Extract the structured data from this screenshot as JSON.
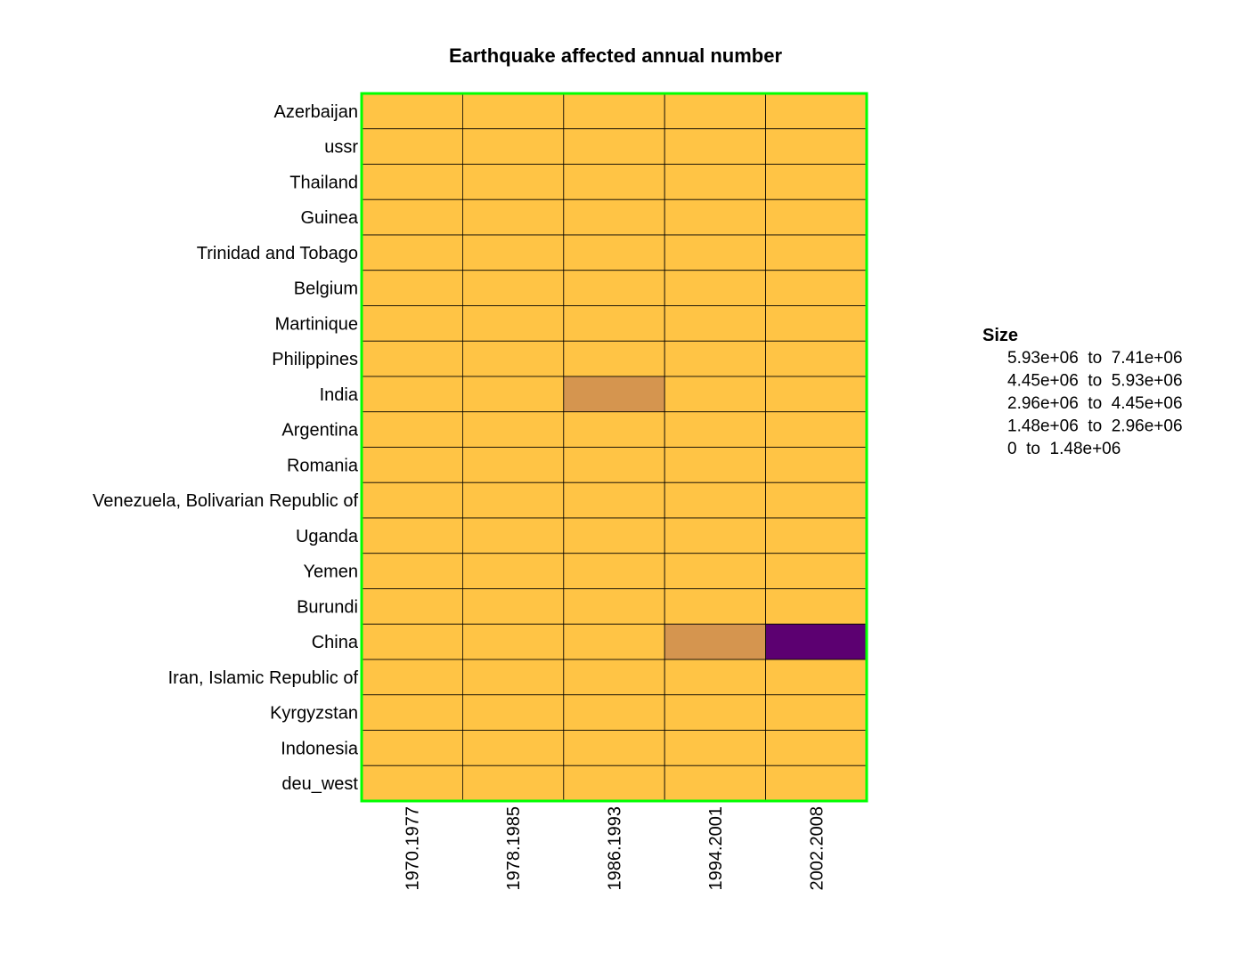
{
  "chart_data": {
    "type": "heatmap",
    "title": "Earthquake affected annual number",
    "x_categories": [
      "1970.1977",
      "1978.1985",
      "1986.1993",
      "1994.2001",
      "2002.2008"
    ],
    "y_categories": [
      "Azerbaijan",
      "ussr",
      "Thailand",
      "Guinea",
      "Trinidad and Tobago",
      "Belgium",
      "Martinique",
      "Philippines",
      "India",
      "Argentina",
      "Romania",
      "Venezuela, Bolivarian Republic of",
      "Uganda",
      "Yemen",
      "Burundi",
      "China",
      "Iran, Islamic Republic of",
      "Kyrgyzstan",
      "Indonesia",
      "deu_west"
    ],
    "bin_index": [
      [
        0,
        0,
        0,
        0,
        0
      ],
      [
        0,
        0,
        0,
        0,
        0
      ],
      [
        0,
        0,
        0,
        0,
        0
      ],
      [
        0,
        0,
        0,
        0,
        0
      ],
      [
        0,
        0,
        0,
        0,
        0
      ],
      [
        0,
        0,
        0,
        0,
        0
      ],
      [
        0,
        0,
        0,
        0,
        0
      ],
      [
        0,
        0,
        0,
        0,
        0
      ],
      [
        0,
        0,
        1,
        0,
        0
      ],
      [
        0,
        0,
        0,
        0,
        0
      ],
      [
        0,
        0,
        0,
        0,
        0
      ],
      [
        0,
        0,
        0,
        0,
        0
      ],
      [
        0,
        0,
        0,
        0,
        0
      ],
      [
        0,
        0,
        0,
        0,
        0
      ],
      [
        0,
        0,
        0,
        0,
        0
      ],
      [
        0,
        0,
        0,
        1,
        4
      ],
      [
        0,
        0,
        0,
        0,
        0
      ],
      [
        0,
        0,
        0,
        0,
        0
      ],
      [
        0,
        0,
        0,
        0,
        0
      ],
      [
        0,
        0,
        0,
        0,
        0
      ]
    ],
    "legend": {
      "title": "Size",
      "placement": "right",
      "entries": [
        "5.93e+06  to  7.41e+06",
        "4.45e+06  to  5.93e+06",
        "2.96e+06  to  4.45e+06",
        "1.48e+06  to  2.96e+06",
        "0  to  1.48e+06"
      ]
    },
    "bins": [
      {
        "range": "0  to  1.48e+06",
        "color": "#FFC445"
      },
      {
        "range": "1.48e+06  to  2.96e+06",
        "color": "#D5954F"
      },
      {
        "range": "2.96e+06  to  4.45e+06",
        "color": "#AB6659"
      },
      {
        "range": "4.45e+06  to  5.93e+06",
        "color": "#833763"
      },
      {
        "range": "5.93e+06  to  7.41e+06",
        "color": "#5C0071"
      }
    ],
    "border_color": "#00FF00",
    "cell_line_color": "#000000"
  }
}
